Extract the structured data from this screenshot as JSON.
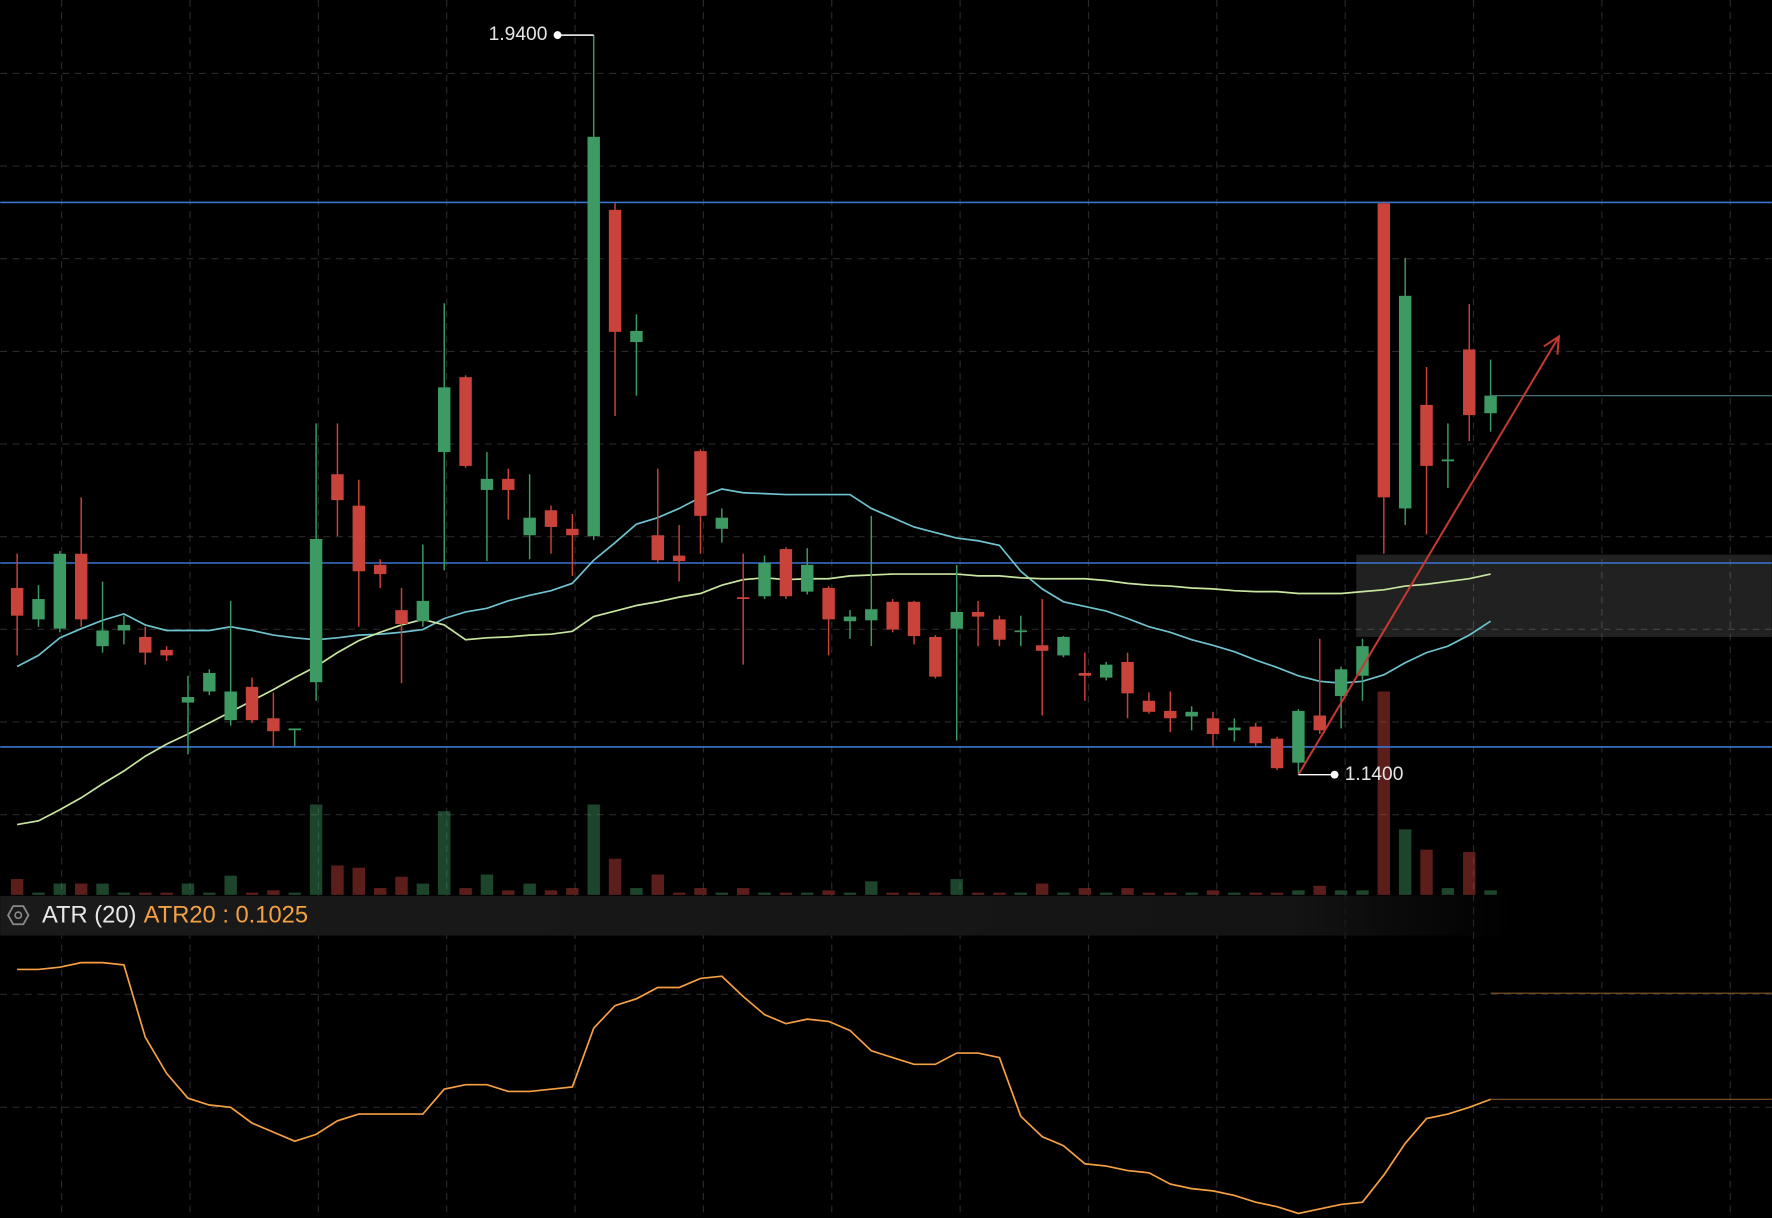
{
  "chart_data": {
    "type": "candlestick",
    "ylim": [
      1.01,
      1.978
    ],
    "open": [
      1.342,
      1.308,
      1.298,
      1.379,
      1.279,
      1.296,
      1.289,
      1.275,
      1.218,
      1.23,
      1.199,
      1.235,
      1.201,
      1.188,
      1.24,
      1.465,
      1.431,
      1.367,
      1.318,
      1.306,
      1.489,
      1.57,
      1.448,
      1.46,
      1.399,
      1.426,
      1.406,
      1.398,
      1.751,
      1.608,
      1.399,
      1.377,
      1.49,
      1.406,
      1.332,
      1.333,
      1.384,
      1.338,
      1.342,
      1.306,
      1.307,
      1.327,
      1.327,
      1.289,
      1.298,
      1.316,
      1.308,
      1.295,
      1.28,
      1.269,
      1.25,
      1.245,
      1.262,
      1.22,
      1.209,
      1.203,
      1.201,
      1.188,
      1.192,
      1.179,
      1.153,
      1.204,
      1.225,
      1.247,
      1.758,
      1.428,
      1.54,
      1.479,
      1.6,
      1.531
    ],
    "high": [
      1.379,
      1.345,
      1.382,
      1.44,
      1.349,
      1.312,
      1.3,
      1.279,
      1.247,
      1.254,
      1.328,
      1.245,
      1.229,
      1.19,
      1.52,
      1.52,
      1.459,
      1.373,
      1.342,
      1.389,
      1.65,
      1.572,
      1.489,
      1.471,
      1.465,
      1.431,
      1.422,
      1.94,
      1.758,
      1.638,
      1.471,
      1.41,
      1.492,
      1.428,
      1.379,
      1.377,
      1.386,
      1.385,
      1.344,
      1.318,
      1.42,
      1.33,
      1.328,
      1.291,
      1.367,
      1.328,
      1.312,
      1.312,
      1.33,
      1.29,
      1.272,
      1.262,
      1.272,
      1.229,
      1.23,
      1.214,
      1.208,
      1.201,
      1.196,
      1.181,
      1.211,
      1.287,
      1.257,
      1.287,
      1.76,
      1.699,
      1.581,
      1.52,
      1.649,
      1.589
    ],
    "low": [
      1.269,
      1.3,
      1.294,
      1.3,
      1.272,
      1.281,
      1.259,
      1.263,
      1.162,
      1.226,
      1.193,
      1.196,
      1.171,
      1.171,
      1.22,
      1.398,
      1.3,
      1.342,
      1.239,
      1.3,
      1.361,
      1.472,
      1.371,
      1.416,
      1.373,
      1.379,
      1.355,
      1.394,
      1.528,
      1.55,
      1.369,
      1.349,
      1.379,
      1.391,
      1.259,
      1.33,
      1.33,
      1.335,
      1.269,
      1.287,
      1.279,
      1.294,
      1.281,
      1.244,
      1.177,
      1.279,
      1.279,
      1.279,
      1.204,
      1.267,
      1.22,
      1.242,
      1.201,
      1.206,
      1.186,
      1.188,
      1.171,
      1.176,
      1.171,
      1.145,
      1.14,
      1.184,
      1.19,
      1.22,
      1.379,
      1.41,
      1.4,
      1.45,
      1.501,
      1.511
    ],
    "close": [
      1.312,
      1.33,
      1.379,
      1.308,
      1.296,
      1.302,
      1.272,
      1.269,
      1.224,
      1.25,
      1.23,
      1.199,
      1.187,
      1.19,
      1.395,
      1.437,
      1.36,
      1.357,
      1.303,
      1.328,
      1.559,
      1.474,
      1.46,
      1.448,
      1.418,
      1.408,
      1.399,
      1.83,
      1.619,
      1.62,
      1.372,
      1.371,
      1.42,
      1.418,
      1.33,
      1.369,
      1.333,
      1.367,
      1.308,
      1.311,
      1.319,
      1.297,
      1.29,
      1.246,
      1.316,
      1.311,
      1.286,
      1.296,
      1.274,
      1.289,
      1.247,
      1.259,
      1.228,
      1.208,
      1.201,
      1.208,
      1.184,
      1.191,
      1.174,
      1.147,
      1.209,
      1.188,
      1.254,
      1.279,
      1.44,
      1.658,
      1.474,
      1.481,
      1.529,
      1.55
    ],
    "up_color": "#3d9a62",
    "down_color": "#c9433a",
    "volume": [
      14,
      2,
      10,
      10,
      10,
      2,
      2,
      2,
      10,
      2,
      17,
      2,
      4,
      2,
      80,
      26,
      24,
      6,
      16,
      10,
      74,
      6,
      18,
      4,
      10,
      4,
      6,
      80,
      32,
      6,
      18,
      2,
      6,
      2,
      6,
      2,
      2,
      2,
      4,
      2,
      12,
      2,
      2,
      2,
      14,
      2,
      2,
      2,
      10,
      2,
      6,
      2,
      6,
      2,
      2,
      2,
      4,
      2,
      2,
      2,
      4,
      8,
      4,
      4,
      180,
      58,
      40,
      6,
      38,
      4
    ],
    "vlim": [
      0,
      200
    ],
    "lines": [
      {
        "color": "#6ec3cf",
        "values": [
          1.257,
          1.269,
          1.288,
          1.298,
          1.307,
          1.314,
          1.302,
          1.296,
          1.296,
          1.296,
          1.3,
          1.296,
          1.291,
          1.288,
          1.286,
          1.288,
          1.291,
          1.292,
          1.294,
          1.297,
          1.309,
          1.316,
          1.32,
          1.328,
          1.334,
          1.339,
          1.347,
          1.372,
          1.391,
          1.411,
          1.418,
          1.428,
          1.44,
          1.449,
          1.445,
          1.444,
          1.443,
          1.443,
          1.443,
          1.443,
          1.428,
          1.418,
          1.408,
          1.402,
          1.396,
          1.393,
          1.388,
          1.36,
          1.341,
          1.327,
          1.322,
          1.317,
          1.309,
          1.3,
          1.294,
          1.286,
          1.28,
          1.273,
          1.264,
          1.256,
          1.247,
          1.241,
          1.239,
          1.241,
          1.248,
          1.261,
          1.272,
          1.279,
          1.291,
          1.306
        ]
      },
      {
        "color": "#c8e6a0",
        "values": [
          1.086,
          1.09,
          1.102,
          1.115,
          1.13,
          1.144,
          1.16,
          1.173,
          1.184,
          1.196,
          1.208,
          1.22,
          1.232,
          1.245,
          1.257,
          1.272,
          1.285,
          1.294,
          1.302,
          1.308,
          1.302,
          1.286,
          1.288,
          1.289,
          1.291,
          1.292,
          1.295,
          1.311,
          1.317,
          1.323,
          1.327,
          1.332,
          1.336,
          1.345,
          1.351,
          1.353,
          1.351,
          1.352,
          1.352,
          1.355,
          1.356,
          1.357,
          1.357,
          1.357,
          1.357,
          1.355,
          1.355,
          1.353,
          1.352,
          1.352,
          1.352,
          1.35,
          1.347,
          1.345,
          1.344,
          1.342,
          1.341,
          1.339,
          1.338,
          1.338,
          1.336,
          1.336,
          1.336,
          1.338,
          1.34,
          1.344,
          1.346,
          1.349,
          1.352,
          1.357
        ]
      }
    ],
    "levels": [
      1.759,
      1.369,
      1.17
    ],
    "level_color": "#3b74d0",
    "zone": {
      "x": 63,
      "y": [
        1.289,
        1.378
      ]
    },
    "arrow": {
      "x": [
        60,
        72.2
      ],
      "y": [
        1.14,
        1.614
      ],
      "color": "#c43a32"
    },
    "annotations": [
      {
        "label": "1.9400",
        "value": 1.94
      },
      {
        "label": "1.1400",
        "value": 1.14
      }
    ],
    "atr": {
      "title": "ATR (20)",
      "label": "ATR20 : 0.1025",
      "color": "#f5a043",
      "lim": [
        0.05,
        0.175
      ],
      "levels": [
        0.1495
      ],
      "values": [
        0.16,
        0.16,
        0.161,
        0.163,
        0.163,
        0.162,
        0.13,
        0.114,
        0.103,
        0.1,
        0.099,
        0.092,
        0.088,
        0.084,
        0.087,
        0.093,
        0.096,
        0.096,
        0.096,
        0.096,
        0.107,
        0.109,
        0.109,
        0.106,
        0.106,
        0.107,
        0.108,
        0.134,
        0.144,
        0.147,
        0.152,
        0.152,
        0.156,
        0.157,
        0.148,
        0.14,
        0.136,
        0.138,
        0.137,
        0.133,
        0.124,
        0.121,
        0.118,
        0.118,
        0.123,
        0.123,
        0.121,
        0.095,
        0.086,
        0.082,
        0.074,
        0.073,
        0.071,
        0.07,
        0.065,
        0.063,
        0.062,
        0.06,
        0.057,
        0.055,
        0.052,
        0.054,
        0.056,
        0.057,
        0.069,
        0.083,
        0.094,
        0.096,
        0.099,
        0.1025
      ]
    }
  }
}
